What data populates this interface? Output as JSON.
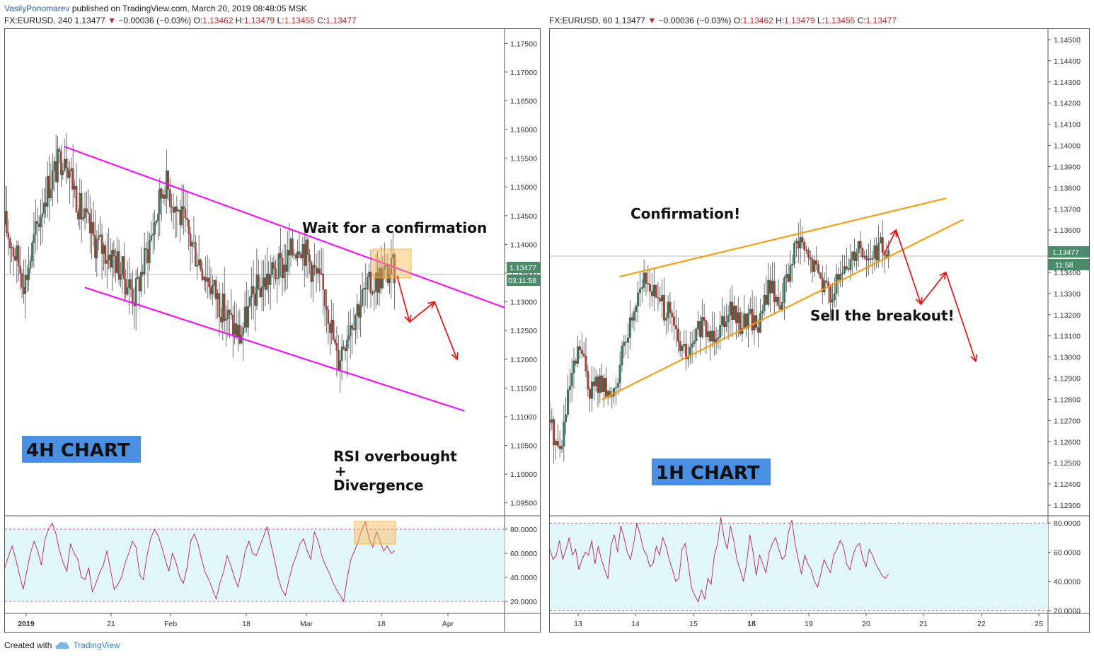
{
  "header": {
    "author": "VasilyPonomarev",
    "published_text": "published on TradingView.com, March 20, 2019 08:48:05 MSK"
  },
  "footer": {
    "created_with": "Created with",
    "brand": "TradingView"
  },
  "colors": {
    "channel": "#ff00ff",
    "wedge": "#ff9800",
    "arrow": "#ff0000",
    "up": "#2e7d5b",
    "down": "#c0392b",
    "rsi_line": "#c2185b",
    "rsi_band": "#e0f7fa",
    "badge": "#4a8c6a",
    "label_bg": "#4a90e2"
  },
  "left": {
    "symbol": "FX:EURUSD, 240",
    "last": "1.13477",
    "change": "−0.00036 (−0.03%)",
    "o_label": "O:",
    "o": "1.13462",
    "h_label": "H:",
    "h": "1.13479",
    "l_label": "L:",
    "l": "1.13455",
    "c_label": "C:",
    "c": "1.13477",
    "price_badge": "1.13477",
    "timer_badge": "03:11:58",
    "chart_label": "4H CHART",
    "annotations": [
      "Wait for a confirmation",
      "RSI overbought",
      "+",
      "Divergence"
    ]
  },
  "right": {
    "symbol": "FX:EURUSD, 60",
    "last": "1.13477",
    "change": "−0.00036 (−0.03%)",
    "o_label": "O:",
    "o": "1.13462",
    "h_label": "H:",
    "h": "1.13479",
    "l_label": "L:",
    "l": "1.13455",
    "c_label": "C:",
    "c": "1.13477",
    "price_badge": "1.13477",
    "timer_badge": "11:58",
    "chart_label": "1H CHART",
    "annotations": [
      "Confirmation!",
      "Sell the breakout!"
    ]
  },
  "chart_data": [
    {
      "type": "candlestick",
      "title": "FX:EURUSD, 240",
      "ylim": [
        1.0925,
        1.1775
      ],
      "y_ticks": [
        "1.17500",
        "1.17000",
        "1.16500",
        "1.16000",
        "1.15500",
        "1.15000",
        "1.14500",
        "1.14000",
        "1.13500",
        "1.13000",
        "1.12500",
        "1.12000",
        "1.11500",
        "1.11000",
        "1.10500",
        "1.10000",
        "1.09500"
      ],
      "x_ticks": [
        "2019",
        "21",
        "Feb",
        "18",
        "Mar",
        "18",
        "Apr"
      ],
      "last_price": 1.13477,
      "close_path": [
        {
          "x": 0.0,
          "y": 1.1435
        },
        {
          "x": 0.04,
          "y": 1.1335
        },
        {
          "x": 0.08,
          "y": 1.149
        },
        {
          "x": 0.12,
          "y": 1.1565
        },
        {
          "x": 0.15,
          "y": 1.146
        },
        {
          "x": 0.18,
          "y": 1.1405
        },
        {
          "x": 0.22,
          "y": 1.1375
        },
        {
          "x": 0.26,
          "y": 1.131
        },
        {
          "x": 0.29,
          "y": 1.1405
        },
        {
          "x": 0.32,
          "y": 1.151
        },
        {
          "x": 0.35,
          "y": 1.145
        },
        {
          "x": 0.38,
          "y": 1.139
        },
        {
          "x": 0.41,
          "y": 1.1335
        },
        {
          "x": 0.44,
          "y": 1.128
        },
        {
          "x": 0.47,
          "y": 1.124
        },
        {
          "x": 0.5,
          "y": 1.1315
        },
        {
          "x": 0.53,
          "y": 1.1345
        },
        {
          "x": 0.56,
          "y": 1.1365
        },
        {
          "x": 0.59,
          "y": 1.141
        },
        {
          "x": 0.62,
          "y": 1.135
        },
        {
          "x": 0.645,
          "y": 1.13
        },
        {
          "x": 0.665,
          "y": 1.1195
        },
        {
          "x": 0.69,
          "y": 1.1265
        },
        {
          "x": 0.72,
          "y": 1.1315
        },
        {
          "x": 0.75,
          "y": 1.1345
        },
        {
          "x": 0.78,
          "y": 1.1355
        }
      ],
      "channel_upper": [
        {
          "x": 0.12,
          "y": 1.157
        },
        {
          "x": 1.0,
          "y": 1.129
        }
      ],
      "channel_lower": [
        {
          "x": 0.16,
          "y": 1.1325
        },
        {
          "x": 0.92,
          "y": 1.111
        }
      ],
      "projection": [
        {
          "x": 0.785,
          "y": 1.1345
        },
        {
          "x": 0.81,
          "y": 1.1265
        },
        {
          "x": 0.86,
          "y": 1.13
        },
        {
          "x": 0.905,
          "y": 1.12
        }
      ],
      "rsi": {
        "ylim": [
          10,
          90
        ],
        "y_ticks": [
          "80.0000",
          "60.0000",
          "40.0000",
          "20.0000"
        ],
        "overbought": 80,
        "oversold": 20,
        "values": [
          48,
          58,
          66,
          55,
          42,
          30,
          45,
          60,
          70,
          62,
          50,
          72,
          80,
          85,
          76,
          62,
          52,
          45,
          68,
          60,
          55,
          40,
          38,
          48,
          28,
          35,
          44,
          50,
          62,
          46,
          30,
          34,
          40,
          52,
          60,
          70,
          65,
          42,
          38,
          58,
          72,
          80,
          75,
          66,
          55,
          45,
          60,
          52,
          40,
          35,
          48,
          70,
          76,
          68,
          55,
          44,
          38,
          30,
          22,
          35,
          44,
          58,
          50,
          40,
          32,
          46,
          62,
          70,
          60,
          58,
          66,
          74,
          82,
          68,
          55,
          40,
          30,
          25,
          38,
          50,
          58,
          68,
          72,
          62,
          55,
          78,
          70,
          58,
          50,
          44,
          36,
          30,
          25,
          20,
          40,
          55,
          62,
          70,
          80,
          86,
          72,
          65,
          78,
          70,
          62,
          66,
          60,
          62
        ]
      }
    },
    {
      "type": "candlestick",
      "title": "FX:EURUSD, 60",
      "ylim": [
        1.1225,
        1.1455
      ],
      "y_ticks": [
        "1.14500",
        "1.14400",
        "1.14300",
        "1.14200",
        "1.14100",
        "1.14000",
        "1.13900",
        "1.13800",
        "1.13700",
        "1.13600",
        "1.13500",
        "1.13400",
        "1.13300",
        "1.13200",
        "1.13100",
        "1.13000",
        "1.12900",
        "1.12800",
        "1.12700",
        "1.12600",
        "1.12500",
        "1.12400",
        "1.12300"
      ],
      "x_ticks": [
        "13",
        "14",
        "15",
        "18",
        "19",
        "20",
        "21",
        "22",
        "25"
      ],
      "last_price": 1.13477,
      "close_path": [
        {
          "x": 0.0,
          "y": 1.127
        },
        {
          "x": 0.02,
          "y": 1.1255
        },
        {
          "x": 0.04,
          "y": 1.1285
        },
        {
          "x": 0.06,
          "y": 1.1305
        },
        {
          "x": 0.08,
          "y": 1.1285
        },
        {
          "x": 0.1,
          "y": 1.1288
        },
        {
          "x": 0.12,
          "y": 1.128
        },
        {
          "x": 0.14,
          "y": 1.1295
        },
        {
          "x": 0.16,
          "y": 1.1315
        },
        {
          "x": 0.18,
          "y": 1.1335
        },
        {
          "x": 0.2,
          "y": 1.1335
        },
        {
          "x": 0.22,
          "y": 1.1325
        },
        {
          "x": 0.24,
          "y": 1.132
        },
        {
          "x": 0.26,
          "y": 1.1305
        },
        {
          "x": 0.28,
          "y": 1.13
        },
        {
          "x": 0.3,
          "y": 1.1315
        },
        {
          "x": 0.32,
          "y": 1.131
        },
        {
          "x": 0.34,
          "y": 1.1315
        },
        {
          "x": 0.36,
          "y": 1.1325
        },
        {
          "x": 0.38,
          "y": 1.1315
        },
        {
          "x": 0.4,
          "y": 1.132
        },
        {
          "x": 0.42,
          "y": 1.1315
        },
        {
          "x": 0.44,
          "y": 1.1335
        },
        {
          "x": 0.46,
          "y": 1.1325
        },
        {
          "x": 0.48,
          "y": 1.134
        },
        {
          "x": 0.5,
          "y": 1.1355
        },
        {
          "x": 0.52,
          "y": 1.1345
        },
        {
          "x": 0.54,
          "y": 1.134
        },
        {
          "x": 0.56,
          "y": 1.133
        },
        {
          "x": 0.58,
          "y": 1.1335
        },
        {
          "x": 0.6,
          "y": 1.1345
        },
        {
          "x": 0.62,
          "y": 1.1355
        },
        {
          "x": 0.64,
          "y": 1.1345
        },
        {
          "x": 0.66,
          "y": 1.1352
        },
        {
          "x": 0.68,
          "y": 1.1348
        }
      ],
      "wedge_upper": [
        {
          "x": 0.14,
          "y": 1.1338
        },
        {
          "x": 0.795,
          "y": 1.1375
        }
      ],
      "wedge_lower": [
        {
          "x": 0.105,
          "y": 1.128
        },
        {
          "x": 0.83,
          "y": 1.1365
        }
      ],
      "projection": [
        {
          "x": 0.67,
          "y": 1.1348
        },
        {
          "x": 0.695,
          "y": 1.136
        },
        {
          "x": 0.745,
          "y": 1.1325
        },
        {
          "x": 0.795,
          "y": 1.134
        },
        {
          "x": 0.855,
          "y": 1.1298
        }
      ],
      "rsi": {
        "ylim": [
          18,
          84
        ],
        "y_ticks": [
          "80.0000",
          "60.0000",
          "40.0000",
          "20.0000"
        ],
        "overbought": 80,
        "oversold": 20,
        "values": [
          62,
          55,
          58,
          68,
          55,
          62,
          70,
          58,
          62,
          48,
          55,
          60,
          58,
          68,
          52,
          64,
          55,
          48,
          42,
          65,
          72,
          60,
          78,
          70,
          60,
          55,
          66,
          80,
          72,
          62,
          58,
          50,
          52,
          64,
          58,
          70,
          64,
          55,
          48,
          40,
          42,
          62,
          66,
          50,
          35,
          30,
          26,
          34,
          28,
          42,
          38,
          58,
          66,
          84,
          70,
          62,
          78,
          68,
          55,
          48,
          40,
          52,
          72,
          60,
          44,
          58,
          52,
          46,
          60,
          66,
          70,
          62,
          55,
          58,
          74,
          82,
          66,
          55,
          45,
          58,
          52,
          48,
          40,
          36,
          45,
          55,
          50,
          46,
          58,
          62,
          68,
          64,
          52,
          48,
          58,
          64,
          66,
          56,
          50,
          62,
          58,
          52,
          48,
          44,
          42,
          45
        ]
      }
    }
  ]
}
